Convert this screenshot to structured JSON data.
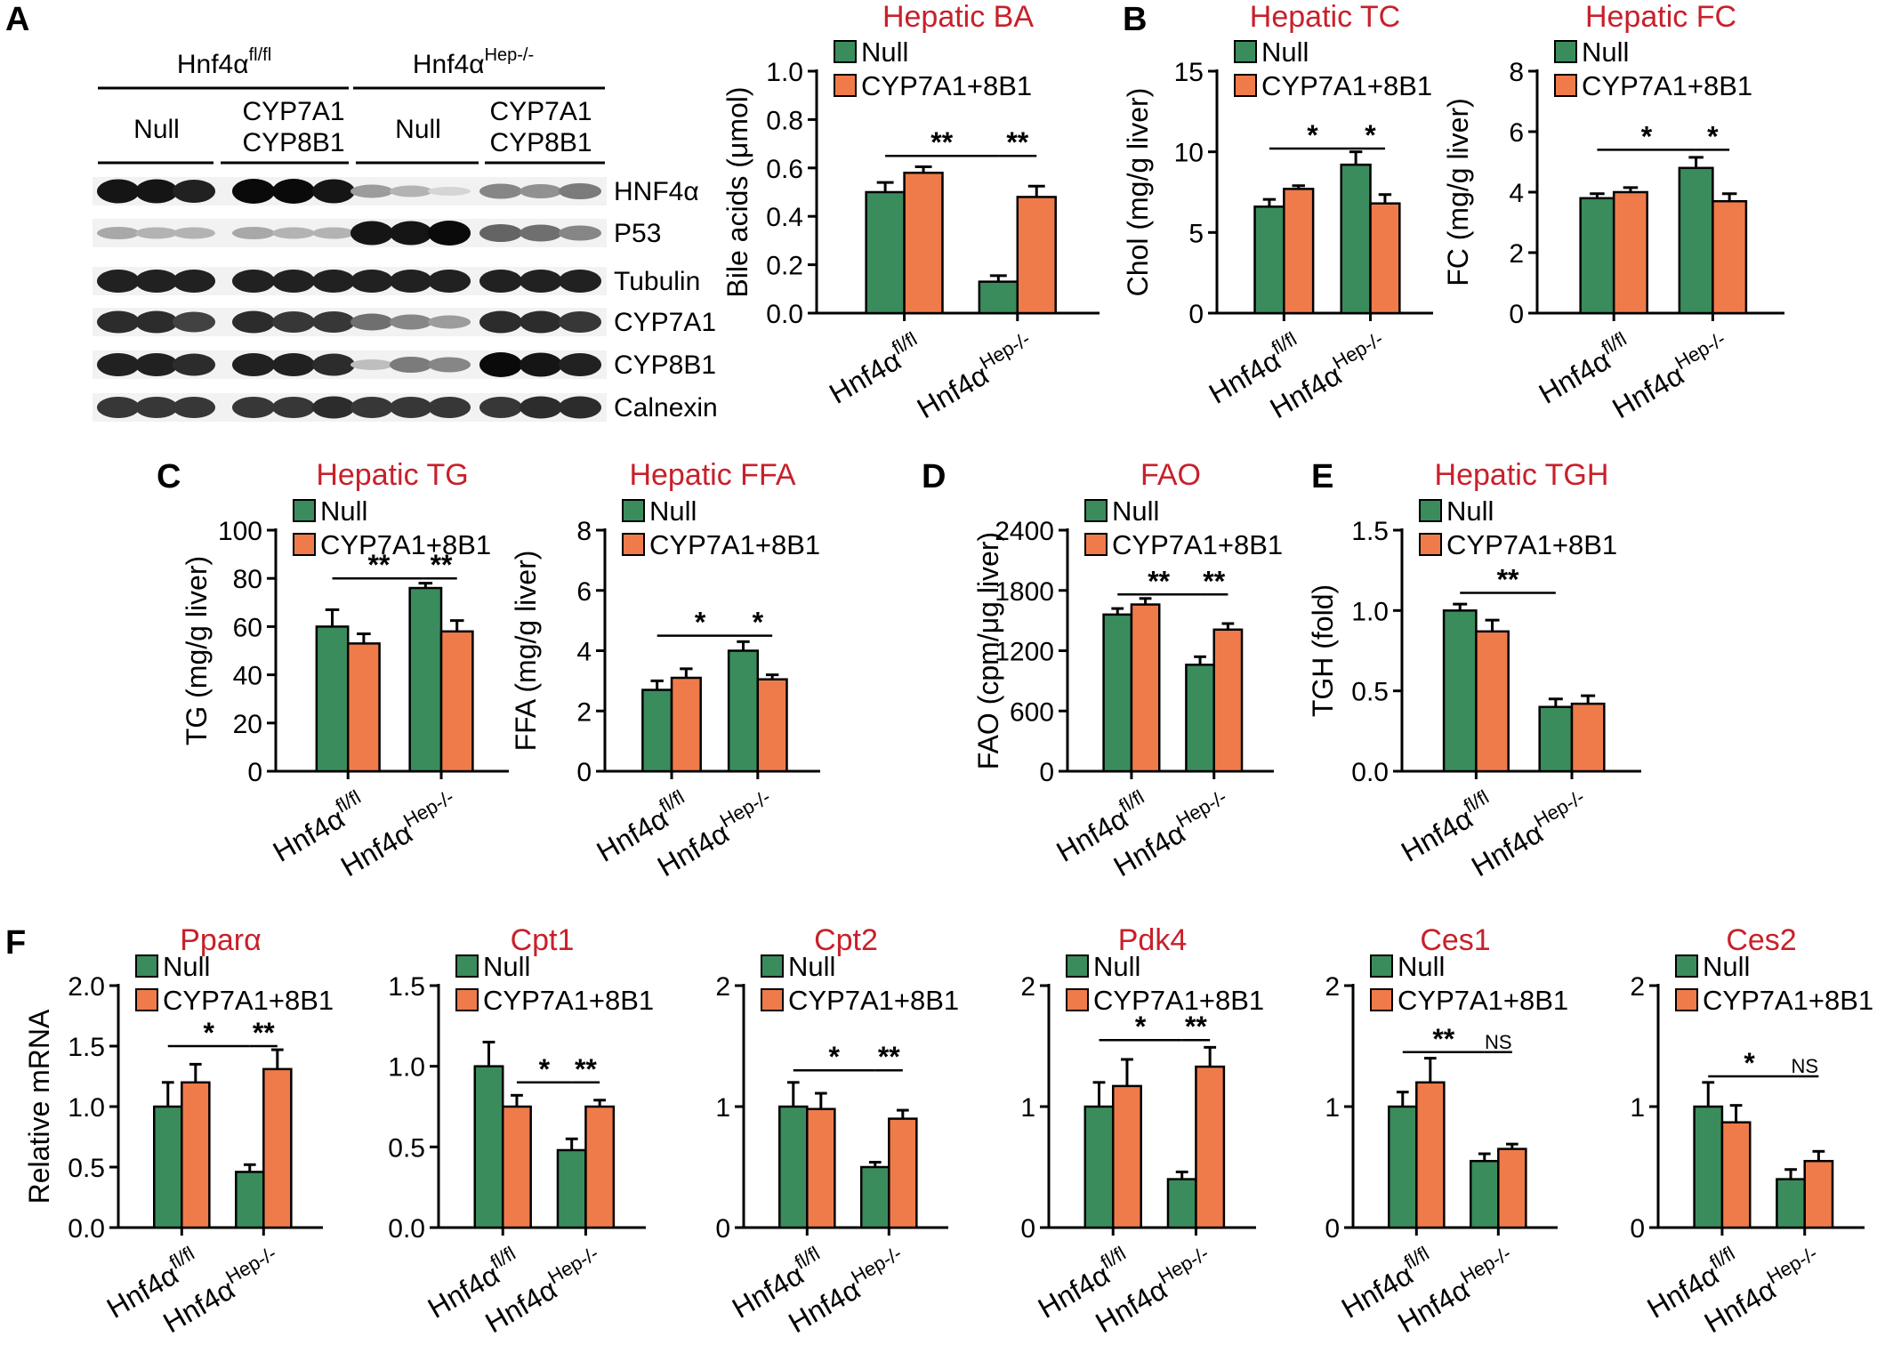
{
  "colors": {
    "null": "#3a8c5c",
    "cyp": "#ef7b4b",
    "title": "#c8202a",
    "axis": "#000000"
  },
  "genotypes": {
    "fl": {
      "base": "Hnf4α",
      "sup": "fl/fl"
    },
    "hep": {
      "base": "Hnf4α",
      "sup": "Hep-/-"
    }
  },
  "legend": {
    "null": "Null",
    "cyp": "CYP7A1+8B1"
  },
  "panel_letters": {
    "a": "A",
    "b": "B",
    "c": "C",
    "d": "D",
    "e": "E",
    "f": "F"
  },
  "blot": {
    "group_fl": {
      "base": "Hnf4α",
      "sup": "fl/fl"
    },
    "group_hep": {
      "base": "Hnf4α",
      "sup": "Hep-/-"
    },
    "sub_null": "Null",
    "sub_cyp_line1": "CYP7A1",
    "sub_cyp_line2": "CYP8B1",
    "rows": [
      {
        "label": "HNF4α",
        "intensity": [
          0.95,
          0.95,
          0.9,
          1.0,
          1.0,
          0.95,
          0.35,
          0.25,
          0.1,
          0.45,
          0.4,
          0.5
        ]
      },
      {
        "label": "P53",
        "intensity": [
          0.3,
          0.25,
          0.25,
          0.3,
          0.25,
          0.25,
          0.95,
          0.95,
          1.0,
          0.6,
          0.55,
          0.45
        ]
      },
      {
        "label": "Tubulin",
        "intensity": [
          0.9,
          0.9,
          0.9,
          0.9,
          0.9,
          0.9,
          0.9,
          0.9,
          0.9,
          0.9,
          0.9,
          0.9
        ]
      },
      {
        "label": "CYP7A1",
        "intensity": [
          0.85,
          0.85,
          0.75,
          0.85,
          0.8,
          0.8,
          0.55,
          0.45,
          0.35,
          0.85,
          0.85,
          0.8
        ]
      },
      {
        "label": "CYP8B1",
        "intensity": [
          0.9,
          0.9,
          0.85,
          0.9,
          0.9,
          0.85,
          0.2,
          0.5,
          0.45,
          1.0,
          0.95,
          0.9
        ]
      },
      {
        "label": "Calnexin",
        "intensity": [
          0.8,
          0.8,
          0.8,
          0.8,
          0.8,
          0.85,
          0.8,
          0.8,
          0.8,
          0.8,
          0.85,
          0.85
        ]
      }
    ]
  },
  "chart_data": [
    {
      "id": "ba",
      "type": "bar",
      "title": "Hepatic BA",
      "ylabel": "Bile acids (μmol)",
      "ylim": [
        0,
        1.0
      ],
      "ticks": [
        0.0,
        0.2,
        0.4,
        0.6,
        0.8,
        1.0
      ],
      "tick_labels": [
        "0.0",
        "0.2",
        "0.4",
        "0.6",
        "0.8",
        "1.0"
      ],
      "categories": [
        "Hnf4α fl/fl",
        "Hnf4α Hep-/-"
      ],
      "series": [
        {
          "name": "Null",
          "values": [
            0.5,
            0.13
          ],
          "errors": [
            0.04,
            0.025
          ]
        },
        {
          "name": "CYP7A1+8B1",
          "values": [
            0.58,
            0.48
          ],
          "errors": [
            0.025,
            0.045
          ]
        }
      ],
      "significance": [
        {
          "from": 0,
          "to": 2,
          "label": "**",
          "y": 0.65
        },
        {
          "from": 2,
          "to": 3,
          "label": "**",
          "y": 0.65
        }
      ]
    },
    {
      "id": "tc",
      "type": "bar",
      "title": "Hepatic TC",
      "ylabel": "Chol (mg/g liver)",
      "ylim": [
        0,
        15
      ],
      "ticks": [
        0,
        5,
        10,
        15
      ],
      "tick_labels": [
        "0",
        "5",
        "10",
        "15"
      ],
      "categories": [
        "Hnf4α fl/fl",
        "Hnf4α Hep-/-"
      ],
      "series": [
        {
          "name": "Null",
          "values": [
            6.6,
            9.2
          ],
          "errors": [
            0.45,
            0.8
          ]
        },
        {
          "name": "CYP7A1+8B1",
          "values": [
            7.7,
            6.8
          ],
          "errors": [
            0.2,
            0.55
          ]
        }
      ],
      "significance": [
        {
          "from": 0,
          "to": 2,
          "label": "*",
          "y": 10.2
        },
        {
          "from": 2,
          "to": 3,
          "label": "*",
          "y": 10.2
        }
      ]
    },
    {
      "id": "fc",
      "type": "bar",
      "title": "Hepatic FC",
      "ylabel": "FC (mg/g liver)",
      "ylim": [
        0,
        8
      ],
      "ticks": [
        0,
        2,
        4,
        6,
        8
      ],
      "tick_labels": [
        "0",
        "2",
        "4",
        "6",
        "8"
      ],
      "categories": [
        "Hnf4α fl/fl",
        "Hnf4α Hep-/-"
      ],
      "series": [
        {
          "name": "Null",
          "values": [
            3.8,
            4.8
          ],
          "errors": [
            0.15,
            0.35
          ]
        },
        {
          "name": "CYP7A1+8B1",
          "values": [
            4.0,
            3.7
          ],
          "errors": [
            0.15,
            0.25
          ]
        }
      ],
      "significance": [
        {
          "from": 0,
          "to": 2,
          "label": "*",
          "y": 5.4
        },
        {
          "from": 2,
          "to": 3,
          "label": "*",
          "y": 5.4
        }
      ]
    },
    {
      "id": "tg",
      "type": "bar",
      "title": "Hepatic TG",
      "ylabel": "TG (mg/g liver)",
      "ylim": [
        0,
        100
      ],
      "ticks": [
        0,
        20,
        40,
        60,
        80,
        100
      ],
      "tick_labels": [
        "0",
        "20",
        "40",
        "60",
        "80",
        "100"
      ],
      "categories": [
        "Hnf4α fl/fl",
        "Hnf4α Hep-/-"
      ],
      "series": [
        {
          "name": "Null",
          "values": [
            60,
            76
          ],
          "errors": [
            7,
            2
          ]
        },
        {
          "name": "CYP7A1+8B1",
          "values": [
            53,
            58
          ],
          "errors": [
            4,
            4.5
          ]
        }
      ],
      "significance": [
        {
          "from": 0,
          "to": 2,
          "label": "**",
          "y": 80
        },
        {
          "from": 2,
          "to": 3,
          "label": "**",
          "y": 80
        }
      ]
    },
    {
      "id": "ffa",
      "type": "bar",
      "title": "Hepatic FFA",
      "ylabel": "FFA (mg/g liver)",
      "ylim": [
        0,
        8
      ],
      "ticks": [
        0,
        2,
        4,
        6,
        8
      ],
      "tick_labels": [
        "0",
        "2",
        "4",
        "6",
        "8"
      ],
      "categories": [
        "Hnf4α fl/fl",
        "Hnf4α Hep-/-"
      ],
      "series": [
        {
          "name": "Null",
          "values": [
            2.7,
            4.0
          ],
          "errors": [
            0.3,
            0.3
          ]
        },
        {
          "name": "CYP7A1+8B1",
          "values": [
            3.1,
            3.05
          ],
          "errors": [
            0.3,
            0.15
          ]
        }
      ],
      "significance": [
        {
          "from": 0,
          "to": 2,
          "label": "*",
          "y": 4.5
        },
        {
          "from": 2,
          "to": 3,
          "label": "*",
          "y": 4.5
        }
      ]
    },
    {
      "id": "fao",
      "type": "bar",
      "title": "FAO",
      "ylabel": "FAO (cpm/μg liver)",
      "ylim": [
        0,
        2400
      ],
      "ticks": [
        0,
        600,
        1200,
        1800,
        2400
      ],
      "tick_labels": [
        "0",
        "600",
        "1200",
        "1800",
        "2400"
      ],
      "categories": [
        "Hnf4α fl/fl",
        "Hnf4α Hep-/-"
      ],
      "series": [
        {
          "name": "Null",
          "values": [
            1560,
            1060
          ],
          "errors": [
            60,
            80
          ]
        },
        {
          "name": "CYP7A1+8B1",
          "values": [
            1660,
            1410
          ],
          "errors": [
            60,
            60
          ]
        }
      ],
      "significance": [
        {
          "from": 0,
          "to": 2,
          "label": "**",
          "y": 1760
        },
        {
          "from": 2,
          "to": 3,
          "label": "**",
          "y": 1760
        }
      ]
    },
    {
      "id": "tgh",
      "type": "bar",
      "title": "Hepatic TGH",
      "ylabel": "TGH (fold)",
      "ylim": [
        0,
        1.5
      ],
      "ticks": [
        0.0,
        0.5,
        1.0,
        1.5
      ],
      "tick_labels": [
        "0.0",
        "0.5",
        "1.0",
        "1.5"
      ],
      "categories": [
        "Hnf4α fl/fl",
        "Hnf4α Hep-/-"
      ],
      "series": [
        {
          "name": "Null",
          "values": [
            1.0,
            0.4
          ],
          "errors": [
            0.04,
            0.05
          ]
        },
        {
          "name": "CYP7A1+8B1",
          "values": [
            0.87,
            0.42
          ],
          "errors": [
            0.07,
            0.05
          ]
        }
      ],
      "significance": [
        {
          "from": 0,
          "to": 2,
          "label": "**",
          "y": 1.11
        }
      ]
    },
    {
      "id": "ppara",
      "type": "bar",
      "title": "Pparα",
      "ylabel": "Relative mRNA",
      "ylim": [
        0,
        2.0
      ],
      "ticks": [
        0.0,
        0.5,
        1.0,
        1.5,
        2.0
      ],
      "tick_labels": [
        "0.0",
        "0.5",
        "1.0",
        "1.5",
        "2.0"
      ],
      "categories": [
        "Hnf4α fl/fl",
        "Hnf4α Hep-/-"
      ],
      "series": [
        {
          "name": "Null",
          "values": [
            1.0,
            0.46
          ],
          "errors": [
            0.2,
            0.06
          ]
        },
        {
          "name": "CYP7A1+8B1",
          "values": [
            1.2,
            1.31
          ],
          "errors": [
            0.15,
            0.16
          ]
        }
      ],
      "significance": [
        {
          "from": 0,
          "to": 2,
          "label": "*",
          "y": 1.5
        },
        {
          "from": 2,
          "to": 3,
          "label": "**",
          "y": 1.5
        }
      ]
    },
    {
      "id": "cpt1",
      "type": "bar",
      "title": "Cpt1",
      "ylabel": "",
      "ylim": [
        0,
        1.5
      ],
      "ticks": [
        0.0,
        0.5,
        1.0,
        1.5
      ],
      "tick_labels": [
        "0.0",
        "0.5",
        "1.0",
        "1.5"
      ],
      "categories": [
        "Hnf4α fl/fl",
        "Hnf4α Hep-/-"
      ],
      "series": [
        {
          "name": "Null",
          "values": [
            1.0,
            0.48
          ],
          "errors": [
            0.15,
            0.07
          ]
        },
        {
          "name": "CYP7A1+8B1",
          "values": [
            0.75,
            0.75
          ],
          "errors": [
            0.07,
            0.04
          ]
        }
      ],
      "significance": [
        {
          "from": 1,
          "to": 2,
          "label": "*",
          "y": 0.9
        },
        {
          "from": 2,
          "to": 3,
          "label": "**",
          "y": 0.9
        }
      ]
    },
    {
      "id": "cpt2",
      "type": "bar",
      "title": "Cpt2",
      "ylabel": "",
      "ylim": [
        0,
        2
      ],
      "ticks": [
        0,
        1,
        2
      ],
      "tick_labels": [
        "0",
        "1",
        "2"
      ],
      "categories": [
        "Hnf4α fl/fl",
        "Hnf4α Hep-/-"
      ],
      "series": [
        {
          "name": "Null",
          "values": [
            1.0,
            0.5
          ],
          "errors": [
            0.2,
            0.04
          ]
        },
        {
          "name": "CYP7A1+8B1",
          "values": [
            0.98,
            0.9
          ],
          "errors": [
            0.13,
            0.07
          ]
        }
      ],
      "significance": [
        {
          "from": 0,
          "to": 2,
          "label": "*",
          "y": 1.3
        },
        {
          "from": 2,
          "to": 3,
          "label": "**",
          "y": 1.3
        }
      ]
    },
    {
      "id": "pdk4",
      "type": "bar",
      "title": "Pdk4",
      "ylabel": "",
      "ylim": [
        0,
        2
      ],
      "ticks": [
        0,
        1,
        2
      ],
      "tick_labels": [
        "0",
        "1",
        "2"
      ],
      "categories": [
        "Hnf4α fl/fl",
        "Hnf4α Hep-/-"
      ],
      "series": [
        {
          "name": "Null",
          "values": [
            1.0,
            0.4
          ],
          "errors": [
            0.2,
            0.06
          ]
        },
        {
          "name": "CYP7A1+8B1",
          "values": [
            1.17,
            1.33
          ],
          "errors": [
            0.22,
            0.16
          ]
        }
      ],
      "significance": [
        {
          "from": 0,
          "to": 2,
          "label": "*",
          "y": 1.55
        },
        {
          "from": 2,
          "to": 3,
          "label": "**",
          "y": 1.55
        }
      ]
    },
    {
      "id": "ces1",
      "type": "bar",
      "title": "Ces1",
      "ylabel": "",
      "ylim": [
        0,
        2
      ],
      "ticks": [
        0,
        1,
        2
      ],
      "tick_labels": [
        "0",
        "1",
        "2"
      ],
      "categories": [
        "Hnf4α fl/fl",
        "Hnf4α Hep-/-"
      ],
      "series": [
        {
          "name": "Null",
          "values": [
            1.0,
            0.55
          ],
          "errors": [
            0.12,
            0.06
          ]
        },
        {
          "name": "CYP7A1+8B1",
          "values": [
            1.2,
            0.65
          ],
          "errors": [
            0.2,
            0.04
          ]
        }
      ],
      "significance": [
        {
          "from": 0,
          "to": 2,
          "label": "**",
          "y": 1.45
        },
        {
          "from": 2,
          "to": 3,
          "label": "NS",
          "y": 1.45
        }
      ]
    },
    {
      "id": "ces2",
      "type": "bar",
      "title": "Ces2",
      "ylabel": "",
      "ylim": [
        0,
        2
      ],
      "ticks": [
        0,
        1,
        2
      ],
      "tick_labels": [
        "0",
        "1",
        "2"
      ],
      "categories": [
        "Hnf4α fl/fl",
        "Hnf4α Hep-/-"
      ],
      "series": [
        {
          "name": "Null",
          "values": [
            1.0,
            0.4
          ],
          "errors": [
            0.2,
            0.08
          ]
        },
        {
          "name": "CYP7A1+8B1",
          "values": [
            0.87,
            0.55
          ],
          "errors": [
            0.14,
            0.08
          ]
        }
      ],
      "significance": [
        {
          "from": 0,
          "to": 2,
          "label": "*",
          "y": 1.25
        },
        {
          "from": 2,
          "to": 3,
          "label": "NS",
          "y": 1.25
        }
      ]
    }
  ]
}
